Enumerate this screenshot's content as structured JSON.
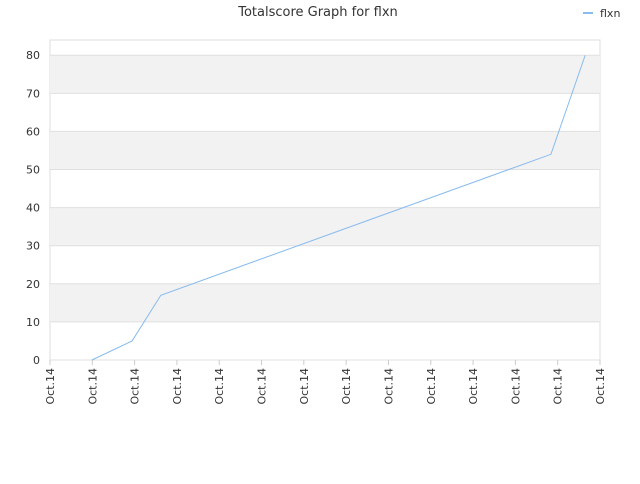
{
  "chart_data": {
    "type": "line",
    "title": "Totalscore Graph for flxn",
    "x": [
      0.99,
      1.94,
      2.62,
      11.84,
      12.65
    ],
    "series": [
      {
        "name": "flxn",
        "color": "#88bbee",
        "values": [
          0,
          5,
          17,
          54,
          80
        ]
      }
    ],
    "xlim": [
      0,
      13
    ],
    "xticks": [
      {
        "value": 0,
        "label": "Oct.14"
      },
      {
        "value": 1,
        "label": "Oct.14"
      },
      {
        "value": 2,
        "label": "Oct.14"
      },
      {
        "value": 3,
        "label": "Oct.14"
      },
      {
        "value": 4,
        "label": "Oct.14"
      },
      {
        "value": 5,
        "label": "Oct.14"
      },
      {
        "value": 6,
        "label": "Oct.14"
      },
      {
        "value": 7,
        "label": "Oct.14"
      },
      {
        "value": 8,
        "label": "Oct.14"
      },
      {
        "value": 9,
        "label": "Oct.14"
      },
      {
        "value": 10,
        "label": "Oct.14"
      },
      {
        "value": 11,
        "label": "Oct.14"
      },
      {
        "value": 12,
        "label": "Oct.14"
      },
      {
        "value": 13,
        "label": "Oct.14"
      }
    ],
    "ylim": [
      0,
      84
    ],
    "yticks": [
      0,
      10,
      20,
      30,
      40,
      50,
      60,
      70,
      80
    ],
    "grid": true,
    "legend": "top-right"
  }
}
